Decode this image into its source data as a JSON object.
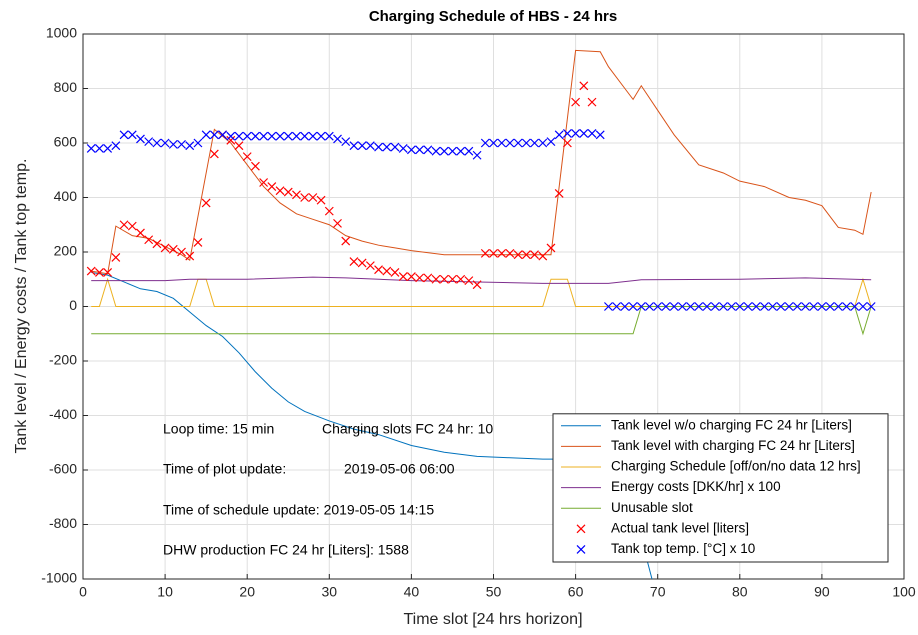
{
  "chart_data": {
    "type": "line",
    "title": "Charging Schedule of HBS - 24 hrs",
    "xlabel": "Time slot [24 hrs horizon]",
    "ylabel": "Tank level / Energy costs / Tank top temp.",
    "xlim": [
      0,
      100
    ],
    "ylim": [
      -1000,
      1000
    ],
    "xticks": [
      0,
      10,
      20,
      30,
      40,
      50,
      60,
      70,
      80,
      90,
      100
    ],
    "yticks": [
      -1000,
      -800,
      -600,
      -400,
      -200,
      0,
      200,
      400,
      600,
      800,
      1000
    ],
    "grid": true,
    "legend": "lower right",
    "annotations": [
      "Loop time: 15 min",
      "Charging slots FC 24 hr: 10",
      "Time of plot update:",
      "2019-05-06 06:00",
      "Time of schedule update: 2019-05-05 14:15",
      "DHW production FC 24 hr [Liters]: 1588"
    ],
    "series": [
      {
        "name": "Tank level w/o charging FC 24 hr [Liters]",
        "color": "#0072bd",
        "marker": "none",
        "x": [
          1,
          3,
          5,
          7,
          9,
          11,
          13,
          15,
          17,
          19,
          21,
          23,
          25,
          27,
          30,
          33,
          36,
          40,
          44,
          48,
          52,
          56,
          60,
          64,
          66,
          68,
          70
        ],
        "values": [
          125,
          115,
          90,
          65,
          55,
          30,
          -20,
          -70,
          -110,
          -170,
          -240,
          -300,
          -350,
          -385,
          -420,
          -450,
          -470,
          -510,
          -535,
          -550,
          -555,
          -560,
          -560,
          -570,
          -640,
          -850,
          -1080
        ]
      },
      {
        "name": "Tank level with charging FC 24 hr [Liters]",
        "color": "#d95319",
        "marker": "none",
        "x": [
          1,
          3,
          4,
          6,
          8,
          10,
          12,
          13,
          16,
          18,
          20,
          22,
          24,
          26,
          28,
          30,
          32,
          34,
          36,
          38,
          40,
          44,
          48,
          52,
          56,
          57,
          60,
          63,
          64,
          66,
          67,
          68,
          70,
          72,
          75,
          78,
          80,
          83,
          86,
          88,
          90,
          91,
          92,
          94,
          95,
          96
        ],
        "values": [
          130,
          120,
          295,
          260,
          250,
          220,
          190,
          170,
          650,
          600,
          520,
          440,
          380,
          340,
          320,
          300,
          260,
          240,
          225,
          215,
          205,
          190,
          190,
          190,
          190,
          190,
          940,
          935,
          880,
          800,
          760,
          810,
          720,
          630,
          520,
          490,
          460,
          440,
          400,
          390,
          370,
          330,
          290,
          280,
          265,
          420
        ]
      },
      {
        "name": "Charging Schedule [off/on/no data 12 hrs]",
        "color": "#edb120",
        "marker": "none",
        "x": [
          1,
          2,
          3,
          4,
          13,
          14,
          15,
          16,
          56,
          57,
          59,
          60,
          94,
          95,
          96
        ],
        "values": [
          0,
          0,
          100,
          0,
          0,
          100,
          100,
          0,
          0,
          100,
          100,
          0,
          0,
          100,
          0
        ]
      },
      {
        "name": "Energy costs [DKK/hr] x 100",
        "color": "#7e2f8e",
        "marker": "none",
        "x": [
          1,
          10,
          13,
          20,
          28,
          32,
          40,
          56,
          64,
          68,
          80,
          88,
          96
        ],
        "values": [
          95,
          95,
          100,
          100,
          108,
          105,
          95,
          85,
          85,
          98,
          100,
          105,
          98
        ]
      },
      {
        "name": "Unusable slot",
        "color": "#77ac30",
        "marker": "none",
        "x": [
          1,
          67,
          68,
          94,
          95,
          96
        ],
        "values": [
          -100,
          -100,
          0,
          0,
          -100,
          0
        ]
      },
      {
        "name": "Actual tank level [liters]",
        "color": "#ff0000",
        "marker": "x",
        "x": [
          1,
          2,
          3,
          4,
          5,
          6,
          7,
          8,
          9,
          10,
          11,
          12,
          13,
          14,
          15,
          16,
          17,
          18,
          19,
          20,
          21,
          22,
          23,
          24,
          25,
          26,
          27,
          28,
          29,
          30,
          31,
          32,
          33,
          34,
          35,
          36,
          37,
          38,
          39,
          40,
          41,
          42,
          43,
          44,
          45,
          46,
          47,
          48,
          49,
          50,
          51,
          52,
          53,
          54,
          55,
          56,
          57,
          58,
          59,
          60,
          61,
          62
        ],
        "values": [
          130,
          125,
          125,
          180,
          300,
          295,
          270,
          245,
          230,
          215,
          210,
          200,
          185,
          235,
          380,
          560,
          630,
          610,
          590,
          550,
          515,
          455,
          440,
          425,
          420,
          410,
          400,
          400,
          390,
          350,
          305,
          240,
          165,
          160,
          150,
          135,
          130,
          125,
          110,
          110,
          105,
          105,
          100,
          100,
          100,
          100,
          95,
          80,
          195,
          195,
          195,
          195,
          190,
          190,
          190,
          185,
          215,
          415,
          600,
          750,
          810,
          750
        ]
      },
      {
        "name": "Tank top temp. [°C] x 10",
        "color": "#0000ff",
        "marker": "x",
        "x": [
          1,
          2,
          3,
          4,
          5,
          6,
          7,
          8,
          9,
          10,
          11,
          12,
          13,
          14,
          15,
          16,
          17,
          18,
          19,
          20,
          21,
          22,
          23,
          24,
          25,
          26,
          27,
          28,
          29,
          30,
          31,
          32,
          33,
          34,
          35,
          36,
          37,
          38,
          39,
          40,
          41,
          42,
          43,
          44,
          45,
          46,
          47,
          48,
          49,
          50,
          51,
          52,
          53,
          54,
          55,
          56,
          57,
          58,
          59,
          60,
          61,
          62,
          63,
          64,
          65,
          66,
          67,
          68,
          69,
          70,
          71,
          72,
          73,
          74,
          75,
          76,
          77,
          78,
          79,
          80,
          81,
          82,
          83,
          84,
          85,
          86,
          87,
          88,
          89,
          90,
          91,
          92,
          93,
          94,
          95,
          96
        ],
        "values": [
          580,
          580,
          580,
          590,
          630,
          630,
          615,
          605,
          600,
          600,
          595,
          595,
          590,
          600,
          630,
          630,
          630,
          625,
          625,
          625,
          625,
          625,
          625,
          625,
          625,
          625,
          625,
          625,
          625,
          625,
          615,
          605,
          590,
          590,
          590,
          585,
          585,
          585,
          580,
          575,
          575,
          575,
          570,
          570,
          570,
          570,
          570,
          555,
          600,
          600,
          600,
          600,
          600,
          600,
          600,
          600,
          605,
          630,
          635,
          635,
          635,
          635,
          630,
          0,
          0,
          0,
          0,
          0,
          0,
          0,
          0,
          0,
          0,
          0,
          0,
          0,
          0,
          0,
          0,
          0,
          0,
          0,
          0,
          0,
          0,
          0,
          0,
          0,
          0,
          0,
          0,
          0,
          0,
          0,
          0,
          0
        ]
      }
    ]
  }
}
